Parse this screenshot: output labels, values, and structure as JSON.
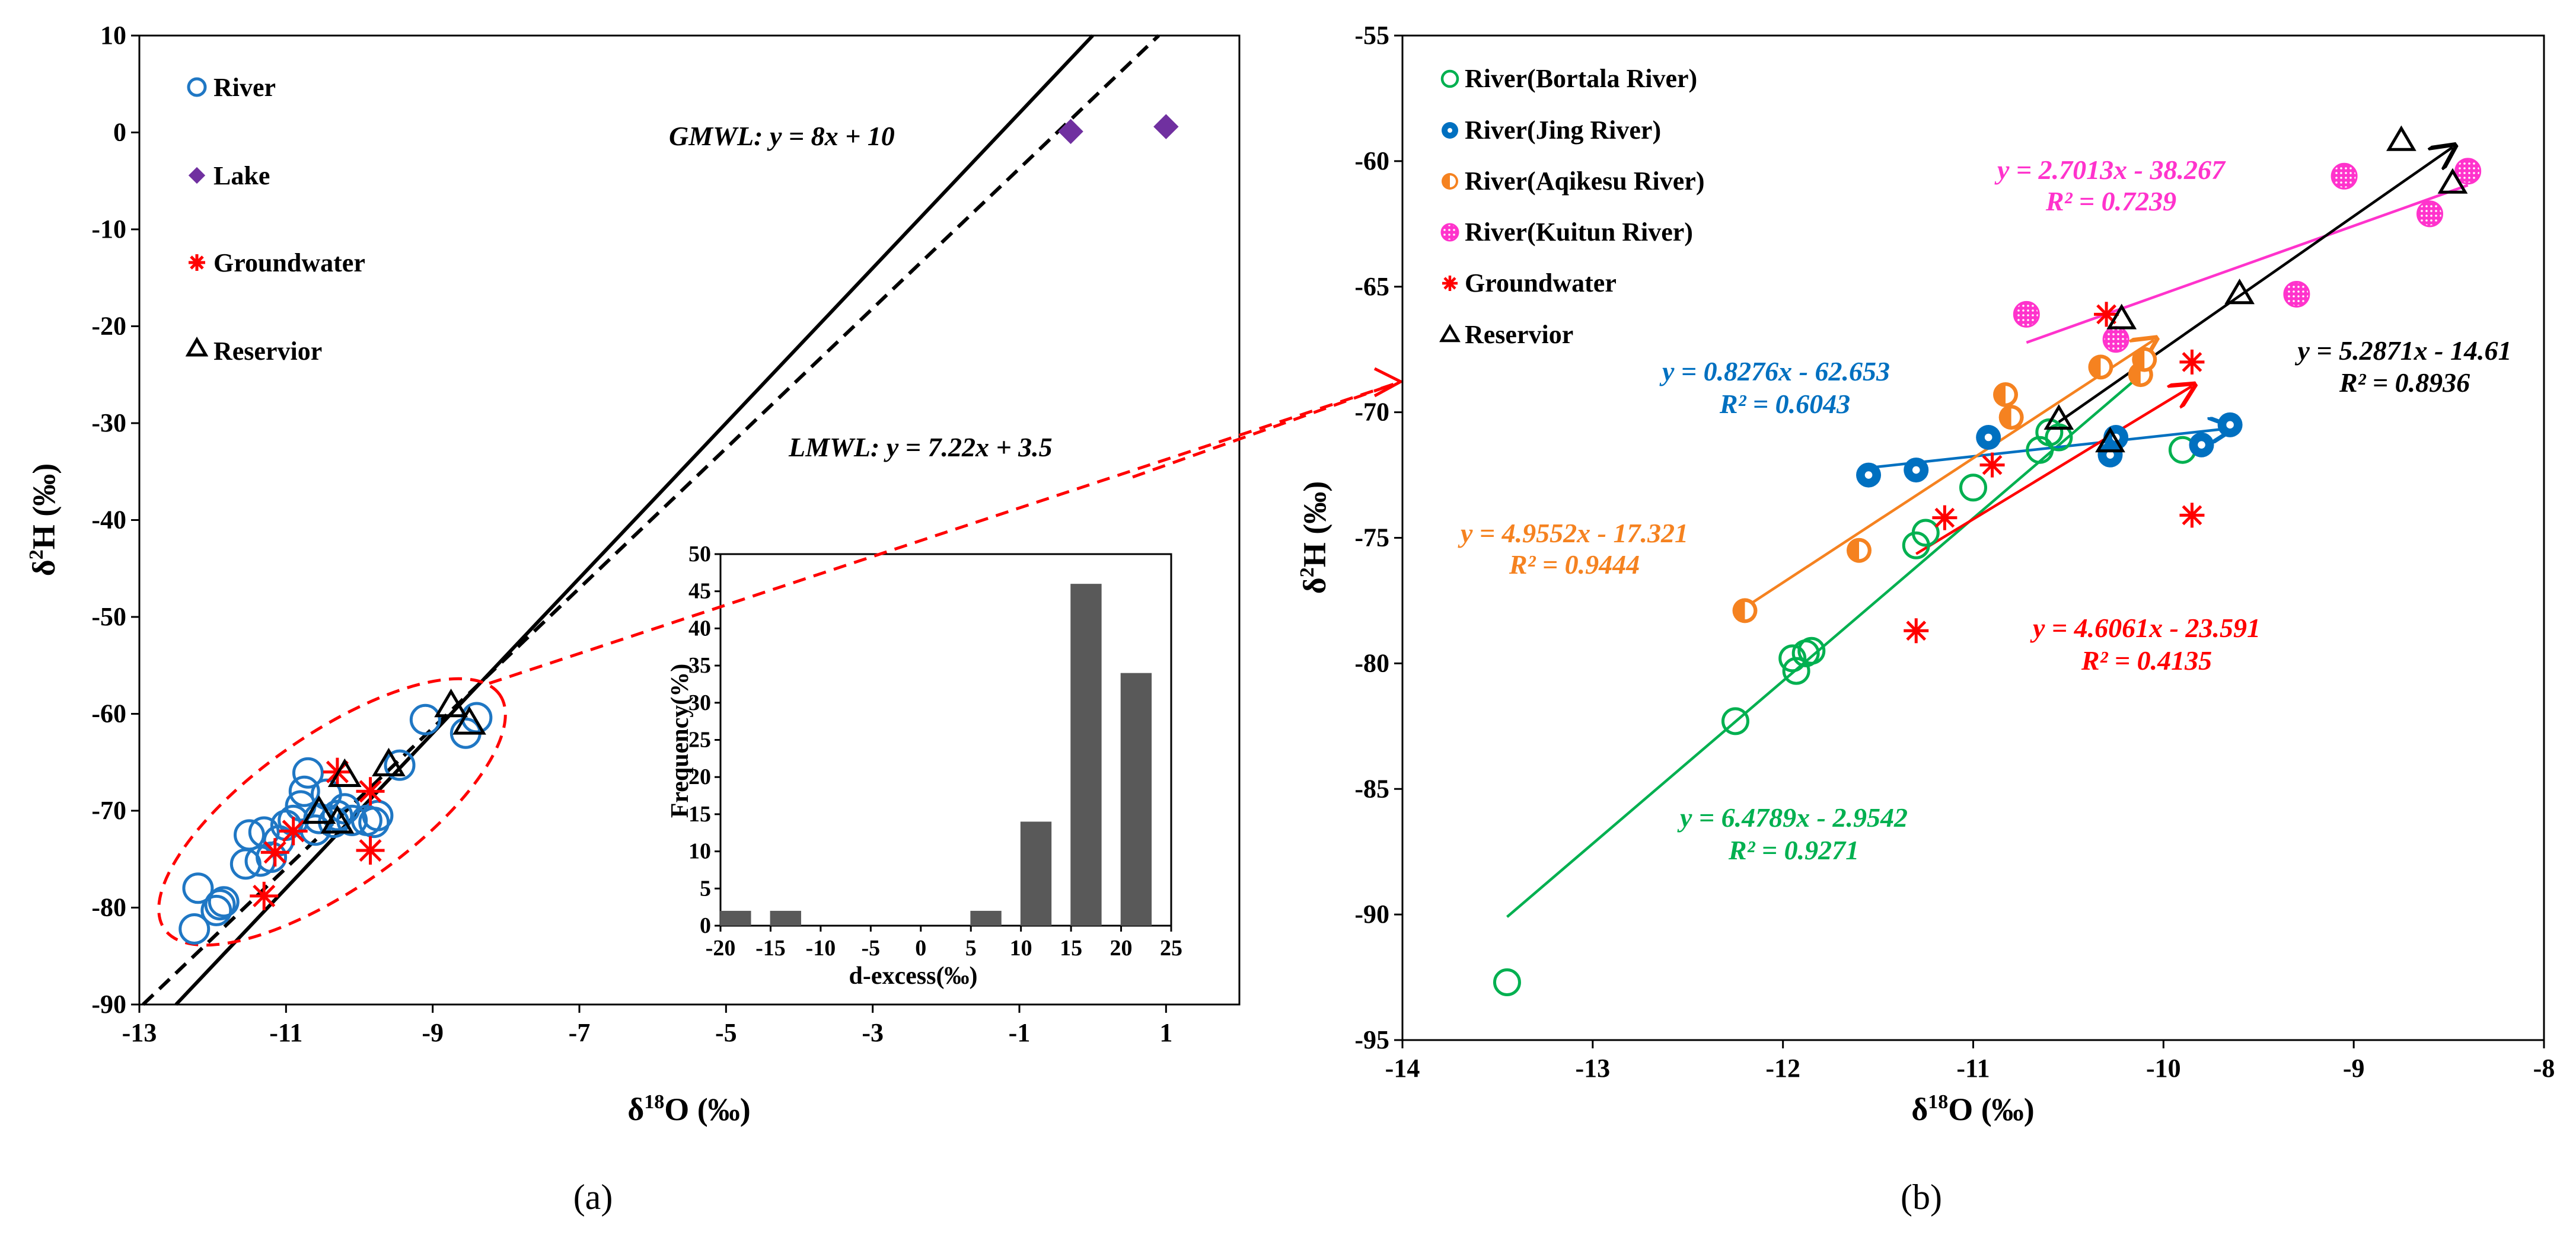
{
  "chart_data": [
    {
      "id": "a",
      "type": "scatter",
      "panel_label": "(a)",
      "xlabel": "δ18O (‰)",
      "ylabel": "δ2H (‰)",
      "xlim": [
        -13,
        2
      ],
      "ylim": [
        -90,
        10
      ],
      "xticks": [
        -13,
        -11,
        -9,
        -7,
        -5,
        -3,
        -1,
        1
      ],
      "yticks": [
        -90,
        -80,
        -70,
        -60,
        -50,
        -40,
        -30,
        -20,
        -10,
        0,
        10
      ],
      "legend_position": "top-left",
      "series": [
        {
          "name": "River",
          "marker": "open-circle",
          "color": "#1f77c4",
          "x": [
            -12.25,
            -12.2,
            -11.95,
            -11.9,
            -11.85,
            -11.55,
            -11.5,
            -11.35,
            -11.3,
            -11.2,
            -11.1,
            -11.0,
            -10.9,
            -10.8,
            -10.75,
            -10.7,
            -10.6,
            -10.55,
            -10.45,
            -10.35,
            -10.3,
            -10.2,
            -10.1,
            -9.9,
            -9.8,
            -9.75,
            -9.45,
            -9.1,
            -8.55,
            -8.4
          ],
          "y": [
            -82.2,
            -78,
            -80.3,
            -79.7,
            -79.4,
            -75.5,
            -72.5,
            -75.2,
            -72.2,
            -74.8,
            -73.1,
            -71.5,
            -71,
            -69.5,
            -68,
            -66.1,
            -72,
            -70.8,
            -68.3,
            -71.2,
            -70.5,
            -69.8,
            -71,
            -71,
            -71.2,
            -70.5,
            -65.3,
            -60.6,
            -62,
            -60.4
          ]
        },
        {
          "name": "Lake",
          "marker": "diamond",
          "color": "#7030a0",
          "x": [
            -0.3,
            1.0
          ],
          "y": [
            0.1,
            0.6
          ]
        },
        {
          "name": "Groundwater",
          "marker": "asterisk",
          "color": "#ff0000",
          "x": [
            -11.3,
            -11.15,
            -10.9,
            -10.3,
            -9.85,
            -9.85
          ],
          "y": [
            -78.8,
            -74.3,
            -72.1,
            -66,
            -68,
            -74.1
          ]
        },
        {
          "name": "Reservior",
          "marker": "open-triangle",
          "color": "#000000",
          "x": [
            -10.55,
            -10.3,
            -10.2,
            -9.6,
            -8.75,
            -8.5
          ],
          "y": [
            -70.2,
            -71.2,
            -66.4,
            -65.3,
            -59.2,
            -61
          ]
        }
      ],
      "lines": [
        {
          "name": "GMWL",
          "label": "GMWL: y = 8x + 10",
          "style": "solid",
          "slope": 8,
          "intercept": 10
        },
        {
          "name": "LMWL",
          "label": "LMWL: y = 7.22x + 3.5",
          "style": "dashed",
          "slope": 7.22,
          "intercept": 3.5
        }
      ],
      "inset": {
        "type": "bar",
        "xlabel": "d-excess(‰)",
        "ylabel": "Frequency(%)",
        "xlim": [
          -20,
          25
        ],
        "ylim": [
          0,
          50
        ],
        "xticks": [
          -20,
          -15,
          -10,
          -5,
          0,
          5,
          10,
          15,
          20,
          25
        ],
        "yticks": [
          0,
          5,
          10,
          15,
          20,
          25,
          30,
          35,
          40,
          45,
          50
        ],
        "categories": [
          -20,
          -15,
          5,
          10,
          15,
          20
        ],
        "values": [
          2,
          2,
          2,
          14,
          46,
          34
        ]
      }
    },
    {
      "id": "b",
      "type": "scatter",
      "panel_label": "(b)",
      "xlabel": "δ18O (‰)",
      "ylabel": "δ2H (‰)",
      "xlim": [
        -14,
        -8
      ],
      "ylim": [
        -95,
        -55
      ],
      "xticks": [
        -14,
        -13,
        -12,
        -11,
        -10,
        -9,
        -8
      ],
      "yticks": [
        -95,
        -90,
        -85,
        -80,
        -75,
        -70,
        -65,
        -60,
        -55
      ],
      "legend_position": "top-left",
      "series": [
        {
          "name": "River(Bortala River)",
          "marker": "open-circle",
          "color": "#00b050",
          "x": [
            -13.45,
            -12.25,
            -11.95,
            -11.93,
            -11.88,
            -11.85,
            -11.3,
            -11.25,
            -11.0,
            -10.65,
            -10.6,
            -10.55,
            -9.9
          ],
          "y": [
            -92.7,
            -82.3,
            -79.8,
            -80.3,
            -79.6,
            -79.5,
            -75.3,
            -74.8,
            -73,
            -71.5,
            -70.8,
            -71,
            -71.5
          ],
          "fit": {
            "label": "y = 6.4789x - 2.9542",
            "r2": "R² = 0.9271",
            "slope": 6.4789,
            "intercept": -2.9542,
            "x_range": [
              -13.45,
              -10.05
            ]
          }
        },
        {
          "name": "River(Jing River)",
          "marker": "dotted-circle",
          "color": "#0070c0",
          "x": [
            -11.55,
            -11.3,
            -10.92,
            -10.28,
            -10.25,
            -9.8,
            -9.65
          ],
          "y": [
            -72.5,
            -72.3,
            -71,
            -71.7,
            -71,
            -71.3,
            -70.5
          ],
          "fit": {
            "label": "y = 0.8276x - 62.653",
            "r2": "R² = 0.6043",
            "slope": 0.8276,
            "intercept": -62.653,
            "x_range": [
              -11.55,
              -9.65
            ]
          }
        },
        {
          "name": "River(Aqikesu River)",
          "marker": "half-circle",
          "color": "#f58220",
          "x": [
            -12.2,
            -11.6,
            -10.83,
            -10.8,
            -10.33,
            -10.12,
            -10.1
          ],
          "y": [
            -77.9,
            -75.5,
            -69.3,
            -70.2,
            -68.2,
            -68.5,
            -67.9
          ],
          "fit": {
            "label": "y = 4.9552x - 17.321",
            "r2": "R² = 0.9444",
            "slope": 4.9552,
            "intercept": -17.321,
            "x_range": [
              -12.2,
              -10.05
            ]
          }
        },
        {
          "name": "River(Kuitun River)",
          "marker": "speckled-circle",
          "color": "#ff33cc",
          "x": [
            -10.72,
            -10.25,
            -9.3,
            -9.05,
            -8.6,
            -8.4
          ],
          "y": [
            -66.1,
            -67.1,
            -65.3,
            -60.6,
            -62.1,
            -60.4
          ],
          "fit": {
            "label": "y = 2.7013x - 38.267",
            "r2": "R² = 0.7239",
            "slope": 2.7013,
            "intercept": -38.267,
            "x_range": [
              -10.72,
              -8.4
            ]
          }
        },
        {
          "name": "Groundwater",
          "marker": "asterisk",
          "color": "#ff0000",
          "x": [
            -11.3,
            -11.15,
            -10.9,
            -10.3,
            -9.85,
            -9.85
          ],
          "y": [
            -78.7,
            -74.2,
            -72.1,
            -66.1,
            -68,
            -74.1
          ],
          "fit": {
            "label": "y = 4.6061x - 23.591",
            "r2": "R² = 0.4135",
            "slope": 4.6061,
            "intercept": -23.591,
            "x_range": [
              -11.3,
              -9.85
            ]
          }
        },
        {
          "name": "Reservior",
          "marker": "open-triangle",
          "color": "#000000",
          "x": [
            -10.55,
            -10.28,
            -10.22,
            -9.6,
            -8.75,
            -8.48
          ],
          "y": [
            -70.3,
            -71.2,
            -66.3,
            -65.3,
            -59.2,
            -60.9
          ],
          "fit": {
            "label": "y = 5.2871x - 14.61",
            "r2": "R² = 0.8936",
            "slope": 5.2871,
            "intercept": -14.61,
            "x_range": [
              -10.55,
              -8.48
            ]
          }
        }
      ]
    }
  ]
}
